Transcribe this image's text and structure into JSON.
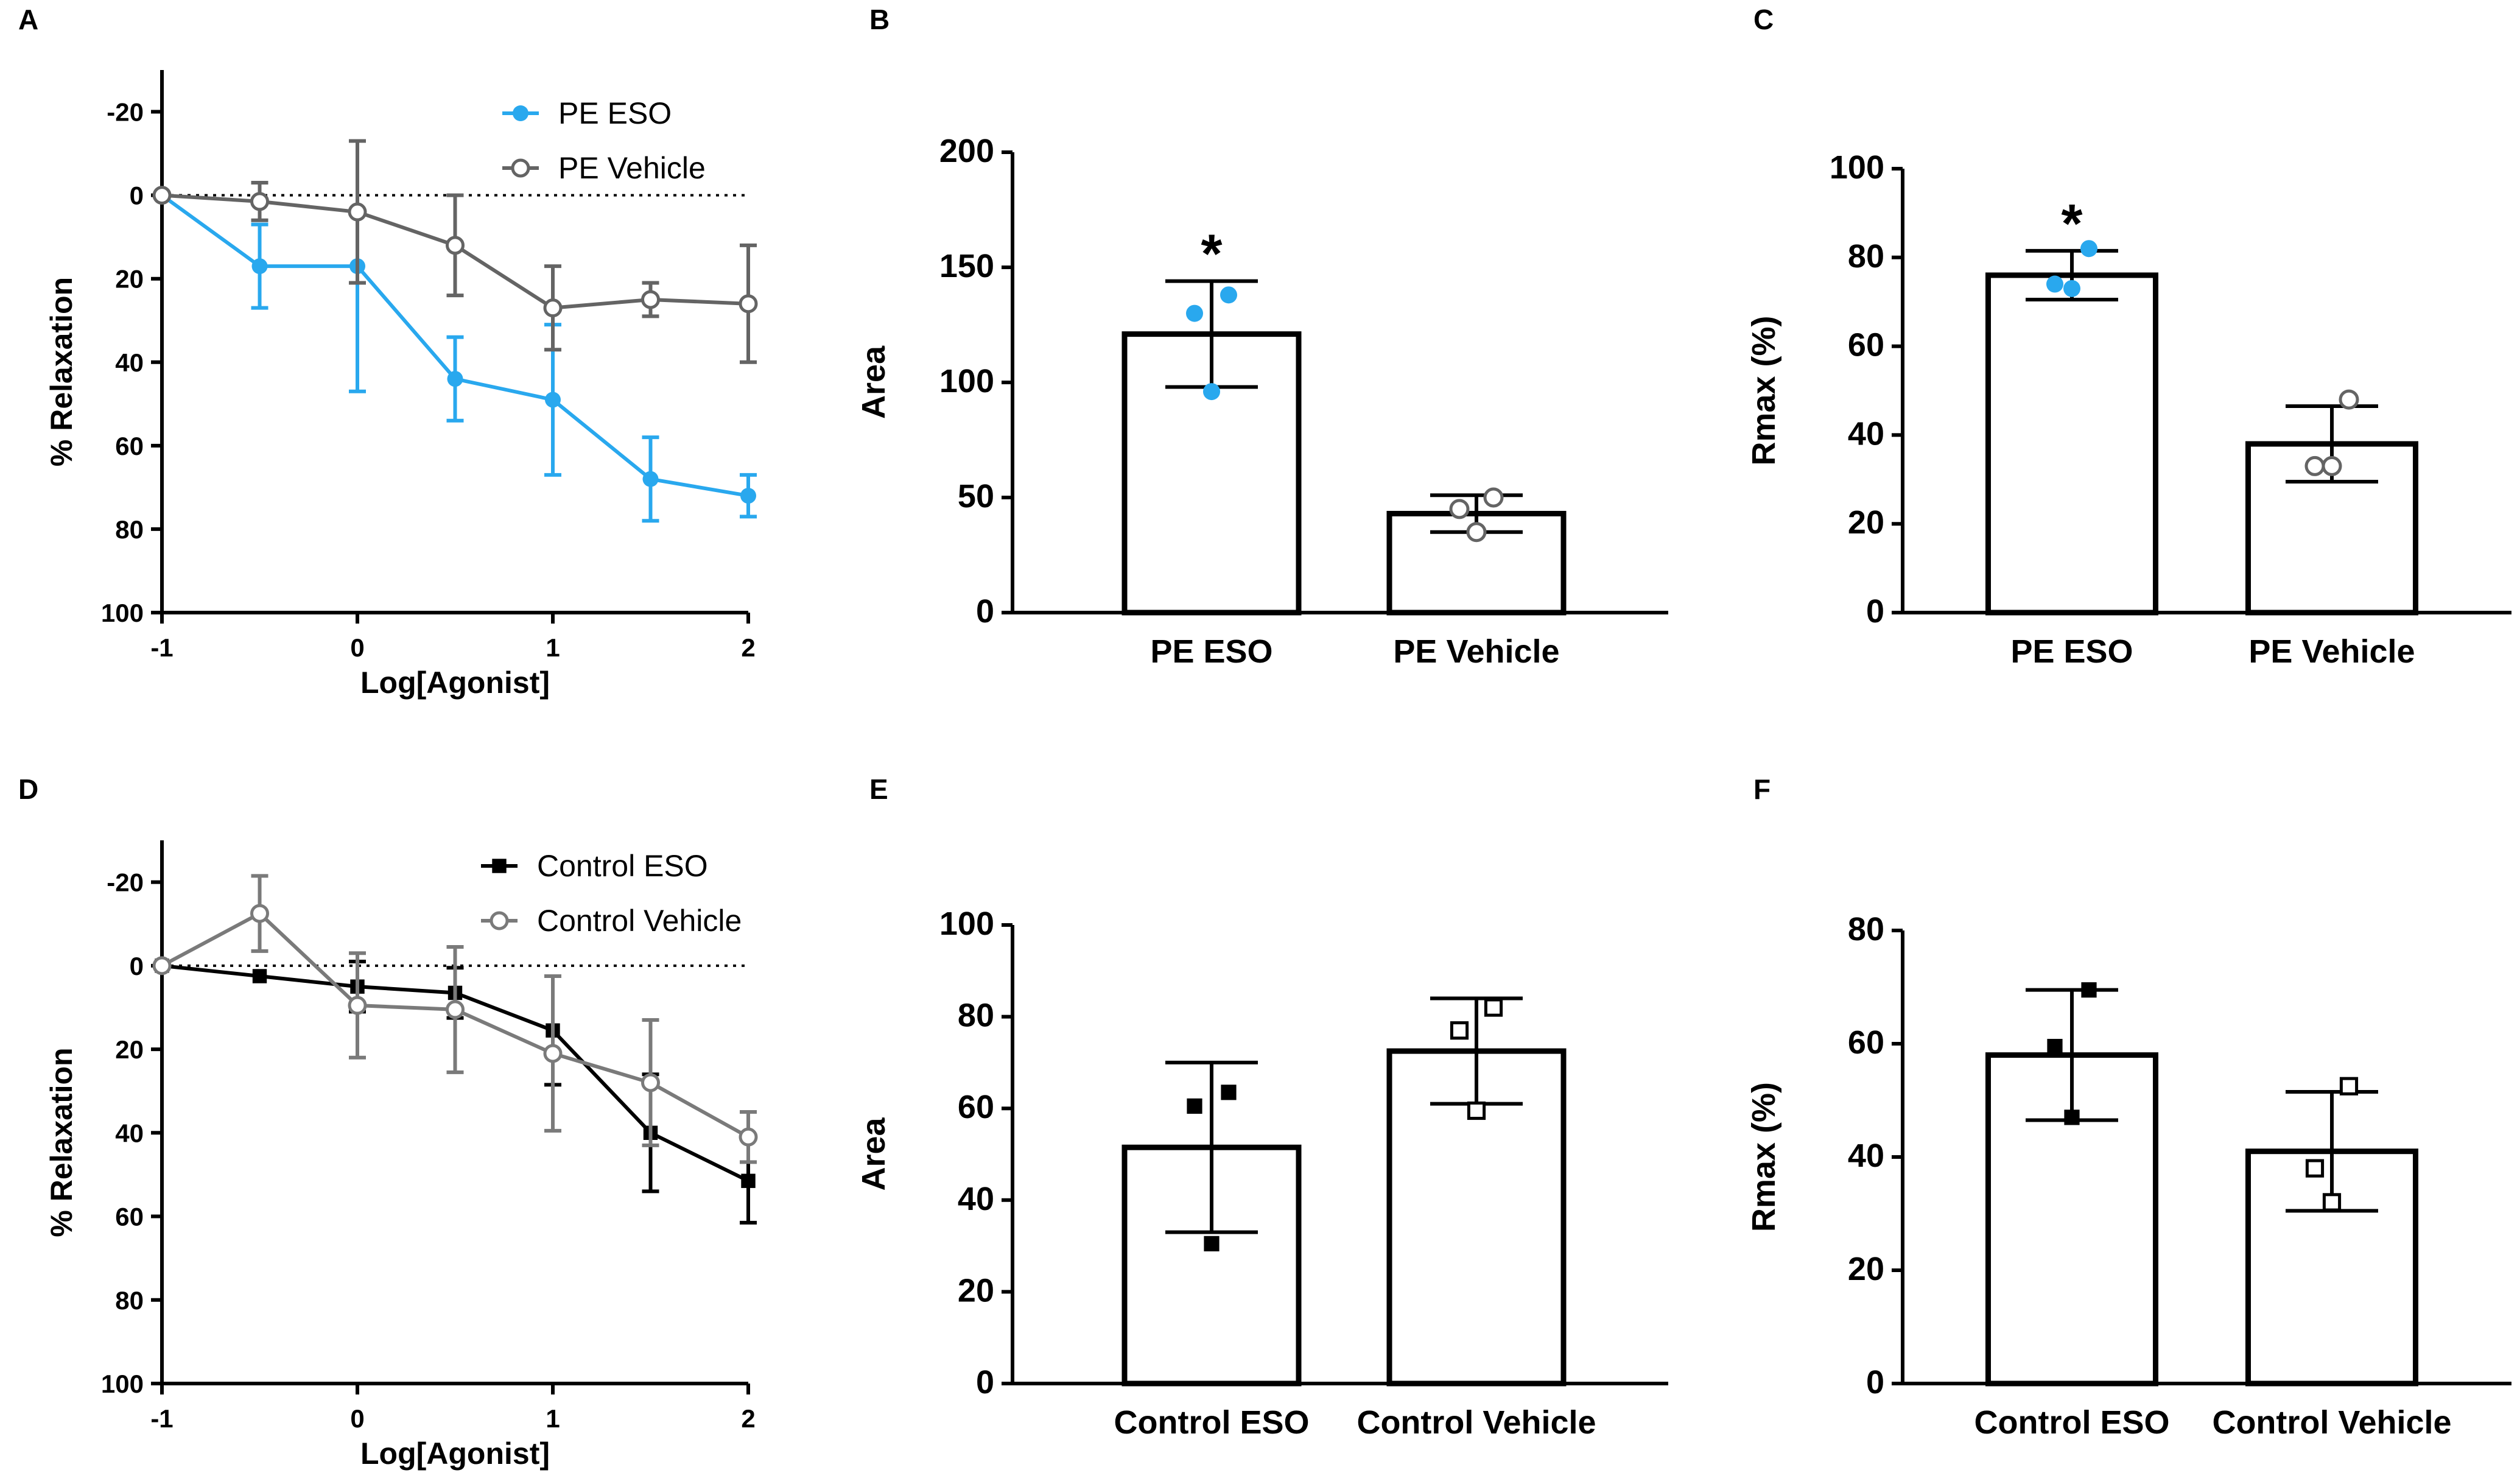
{
  "colors": {
    "pe_eso": "#29A8EE",
    "pe_vehicle": "#646464",
    "control_eso": "#000000",
    "control_vehicle": "#7a7a7a",
    "bar_stroke": "#000000"
  },
  "chart_data": [
    {
      "id": "A",
      "label": "A",
      "type": "line",
      "xlabel": "Log[Agonist]",
      "ylabel": "% Relaxation",
      "x_ticks": [
        -1,
        0,
        1,
        2
      ],
      "y_ticks": [
        -20,
        0,
        20,
        40,
        60,
        80,
        100
      ],
      "xlim": [
        -1,
        2
      ],
      "ylim": [
        -30,
        100
      ],
      "y_inverted": true,
      "reference_line": 0,
      "legend_position": "top-right",
      "series": [
        {
          "name": "PE ESO",
          "color": "#29A8EE",
          "marker": "filled-circle",
          "x": [
            -1,
            -0.5,
            0,
            0.5,
            1,
            1.5,
            2
          ],
          "y": [
            0,
            17,
            17,
            44,
            49,
            68,
            72
          ],
          "err": [
            0,
            10,
            30,
            10,
            18,
            10,
            5
          ]
        },
        {
          "name": "PE Vehicle",
          "color": "#646464",
          "marker": "open-circle",
          "x": [
            -1,
            -0.5,
            0,
            0.5,
            1,
            1.5,
            2
          ],
          "y": [
            0,
            1.5,
            4,
            12,
            27,
            25,
            26
          ],
          "err": [
            0,
            4.5,
            17,
            12,
            10,
            4,
            14
          ]
        }
      ]
    },
    {
      "id": "B",
      "label": "B",
      "type": "bar",
      "categories": [
        "PE ESO",
        "PE Vehicle"
      ],
      "values": [
        121,
        43
      ],
      "errors": [
        23,
        8
      ],
      "points": [
        [
          96,
          130,
          138
        ],
        [
          35,
          45,
          50
        ]
      ],
      "point_markers": [
        "filled-circle",
        "open-circle"
      ],
      "point_colors": [
        "#29A8EE",
        "#646464"
      ],
      "ylabel": "Area",
      "y_ticks": [
        0,
        50,
        100,
        150,
        200
      ],
      "ylim": [
        0,
        200
      ],
      "significance": [
        "*",
        ""
      ]
    },
    {
      "id": "C",
      "label": "C",
      "type": "bar",
      "categories": [
        "PE ESO",
        "PE Vehicle"
      ],
      "values": [
        76,
        38
      ],
      "errors": [
        5.5,
        8.5
      ],
      "points": [
        [
          73,
          74,
          82
        ],
        [
          33,
          33,
          48
        ]
      ],
      "point_markers": [
        "filled-circle",
        "open-circle"
      ],
      "point_colors": [
        "#29A8EE",
        "#646464"
      ],
      "ylabel": "Rmax (%)",
      "y_ticks": [
        0,
        20,
        40,
        60,
        80,
        100
      ],
      "ylim": [
        0,
        100
      ],
      "significance": [
        "*",
        ""
      ]
    },
    {
      "id": "D",
      "label": "D",
      "type": "line",
      "xlabel": "Log[Agonist]",
      "ylabel": "% Relaxation",
      "x_ticks": [
        -1,
        0,
        1,
        2
      ],
      "y_ticks": [
        -20,
        0,
        20,
        40,
        60,
        80,
        100
      ],
      "xlim": [
        -1,
        2
      ],
      "ylim": [
        -30,
        100
      ],
      "y_inverted": true,
      "reference_line": 0,
      "legend_position": "top-right",
      "series": [
        {
          "name": "Control ESO",
          "color": "#000000",
          "marker": "filled-square",
          "x": [
            -1,
            -0.5,
            0,
            0.5,
            1,
            1.5,
            2
          ],
          "y": [
            0,
            2.5,
            5,
            6.5,
            15.5,
            40,
            51.5
          ],
          "err": [
            0,
            0,
            6,
            6,
            13,
            14,
            10
          ]
        },
        {
          "name": "Control Vehicle",
          "color": "#7a7a7a",
          "marker": "open-circle",
          "x": [
            -1,
            -0.5,
            0,
            0.5,
            1,
            1.5,
            2
          ],
          "y": [
            0,
            -12.5,
            9.5,
            10.5,
            21,
            28,
            41
          ],
          "err": [
            0,
            9,
            12.5,
            15,
            18.5,
            15,
            6
          ]
        }
      ]
    },
    {
      "id": "E",
      "label": "E",
      "type": "bar",
      "categories": [
        "Control ESO",
        "Control Vehicle"
      ],
      "values": [
        51.5,
        72.5
      ],
      "errors": [
        18.5,
        11.5
      ],
      "points": [
        [
          30.5,
          60.5,
          63.5
        ],
        [
          59.5,
          77,
          82
        ]
      ],
      "point_markers": [
        "filled-square",
        "open-square"
      ],
      "point_colors": [
        "#000000",
        "#000000"
      ],
      "ylabel": "Area",
      "y_ticks": [
        0,
        20,
        40,
        60,
        80,
        100
      ],
      "ylim": [
        0,
        100
      ],
      "significance": [
        "",
        ""
      ]
    },
    {
      "id": "F",
      "label": "F",
      "type": "bar",
      "categories": [
        "Control ESO",
        "Control Vehicle"
      ],
      "values": [
        58,
        41
      ],
      "errors": [
        11.5,
        10.5
      ],
      "points": [
        [
          47,
          59.5,
          69.5
        ],
        [
          32,
          38,
          52.5
        ]
      ],
      "point_markers": [
        "filled-square",
        "open-square"
      ],
      "point_colors": [
        "#000000",
        "#000000"
      ],
      "ylabel": "Rmax (%)",
      "y_ticks": [
        0,
        20,
        40,
        60,
        80
      ],
      "ylim": [
        0,
        80
      ],
      "significance": [
        "",
        ""
      ]
    }
  ]
}
